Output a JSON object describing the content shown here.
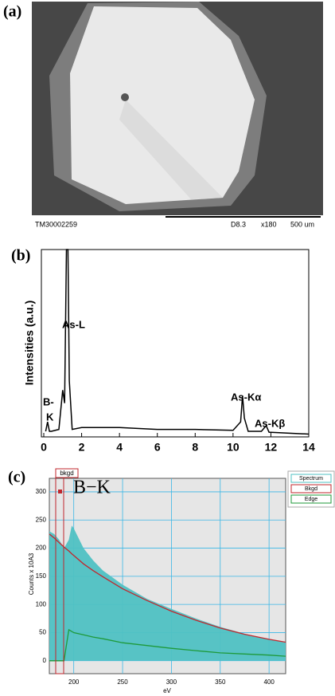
{
  "panel_labels": [
    "(a)",
    "(b)",
    "(c)"
  ],
  "sem_image": {
    "texts": [
      "TM30002259",
      "D8.3",
      "x180",
      "500 um"
    ]
  },
  "chart_data": [
    {
      "type": "line",
      "y_label": "Intensities (a.u.)",
      "color": "#000000",
      "x": [
        0.1,
        0.2,
        0.3,
        0.4,
        0.8,
        1.0,
        1.1,
        1.2,
        1.28,
        1.35,
        1.5,
        2,
        4,
        6,
        8,
        10,
        10.4,
        10.5,
        10.6,
        10.8,
        11.5,
        11.75,
        11.9,
        14
      ],
      "values": [
        3,
        8,
        3,
        3,
        4,
        25,
        18,
        100,
        100,
        30,
        4,
        5,
        5,
        4,
        4,
        3.5,
        8,
        22,
        10,
        3,
        3,
        6,
        2.5,
        1.5
      ],
      "xlim": [
        0,
        14
      ],
      "xticks": [
        0,
        2,
        4,
        6,
        8,
        10,
        12,
        14
      ],
      "ylim": [
        0,
        100
      ],
      "annotations": [
        "B-",
        "K",
        "As-L",
        "As-Kα",
        "As-Kβ"
      ]
    },
    {
      "type": "area",
      "x_label": "eV",
      "y_label": "Counts x 10A3",
      "annotations": [
        "B−K",
        "bkgd"
      ],
      "legend": "right-outside",
      "grid": true,
      "xlim": [
        175,
        417
      ],
      "xticks": [
        200,
        250,
        300,
        350,
        400
      ],
      "ylim": [
        -23,
        324
      ],
      "yticks": [
        0,
        50,
        100,
        150,
        200,
        250,
        300
      ],
      "x": [
        175,
        180,
        185,
        190,
        195,
        198,
        200,
        210,
        220,
        230,
        250,
        275,
        300,
        325,
        350,
        375,
        400,
        417
      ],
      "series": [
        {
          "name": "Spectrum",
          "color": "#4fc1c3",
          "values": [
            230,
            225,
            215,
            200,
            215,
            240,
            235,
            200,
            178,
            160,
            135,
            110,
            92,
            75,
            60,
            48,
            38,
            32
          ]
        },
        {
          "name": "Bkgd",
          "color": "#c0272d",
          "values": [
            225,
            218,
            210,
            202,
            195,
            190,
            187,
            172,
            160,
            149,
            128,
            107,
            88,
            72,
            58,
            47,
            38,
            33
          ]
        },
        {
          "name": "Edge",
          "color": "#1e9a3a",
          "values": [
            0,
            0,
            0,
            0,
            55,
            52,
            50,
            46,
            42,
            39,
            32,
            27,
            22,
            18,
            14,
            12,
            10,
            8
          ]
        }
      ]
    }
  ]
}
